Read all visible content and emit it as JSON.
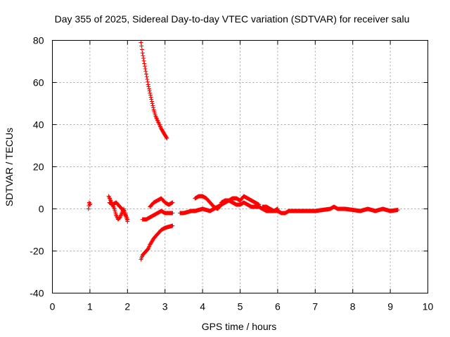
{
  "chart_data": {
    "type": "scatter",
    "title": "Day 355 of 2025, Sidereal Day-to-day VTEC variation (SDTVAR) for receiver salu",
    "xlabel": "GPS time / hours",
    "ylabel": "SDTVAR / TECUs",
    "xlim": [
      0,
      10
    ],
    "ylim": [
      -40,
      80
    ],
    "xticks": [
      0,
      1,
      2,
      3,
      4,
      5,
      6,
      7,
      8,
      9,
      10
    ],
    "yticks": [
      -40,
      -20,
      0,
      20,
      40,
      60,
      80
    ],
    "grid": true,
    "marker": "+",
    "color": "#ff0000",
    "series": [
      {
        "name": "SDTVAR",
        "segments": [
          {
            "x": [
              0.96,
              0.97,
              0.98,
              1.0,
              1.01
            ],
            "y": [
              0.0,
              1.5,
              3.0,
              2.0,
              2.5
            ]
          },
          {
            "x": [
              1.5,
              1.55,
              1.6,
              1.65,
              1.7,
              1.75,
              1.8,
              1.85,
              1.9,
              1.95,
              2.0
            ],
            "y": [
              6.0,
              4.0,
              2.0,
              0.0,
              -3.0,
              -5.0,
              -4.0,
              -2.0,
              0.0,
              -3.0,
              -6.0
            ]
          },
          {
            "x": [
              1.52,
              1.6,
              1.7,
              1.8,
              1.9,
              2.0
            ],
            "y": [
              3.0,
              2.0,
              3.0,
              1.0,
              -1.0,
              -5.0
            ]
          },
          {
            "x": [
              2.36,
              2.4,
              2.45,
              2.5,
              2.55,
              2.6,
              2.65,
              2.7,
              2.75,
              2.8,
              2.85,
              2.9,
              2.95,
              3.0,
              3.05
            ],
            "y": [
              79.0,
              74.0,
              69.0,
              64.0,
              59.0,
              55.0,
              51.0,
              47.0,
              44.0,
              42.0,
              40.0,
              38.0,
              36.5,
              35.0,
              33.5
            ]
          },
          {
            "x": [
              2.4,
              2.5,
              2.6,
              2.7,
              2.8,
              2.9,
              3.0,
              3.1,
              3.2
            ],
            "y": [
              -5.0,
              -5.0,
              -4.0,
              -3.0,
              -2.0,
              -1.0,
              -2.0,
              -2.0,
              -2.0
            ]
          },
          {
            "x": [
              2.6,
              2.7,
              2.8,
              2.9,
              3.0,
              3.1,
              3.2
            ],
            "y": [
              1.0,
              3.0,
              4.0,
              5.0,
              3.0,
              2.0,
              3.0
            ]
          },
          {
            "x": [
              2.36,
              2.4,
              2.45,
              2.5,
              2.55,
              2.6,
              2.7,
              2.8,
              2.9,
              3.0,
              3.1,
              3.2
            ],
            "y": [
              -24.0,
              -22.0,
              -21.0,
              -20.0,
              -19.0,
              -17.0,
              -14.0,
              -12.0,
              -10.0,
              -9.0,
              -8.5,
              -8.0
            ]
          },
          {
            "x": [
              3.4,
              3.5,
              3.6,
              3.7,
              3.8,
              3.9,
              4.0,
              4.1,
              4.2,
              4.3,
              4.4,
              4.5
            ],
            "y": [
              -2.0,
              -2.0,
              -1.5,
              -1.0,
              -1.0,
              -0.5,
              0.0,
              -0.5,
              -1.0,
              0.0,
              1.0,
              2.0
            ]
          },
          {
            "x": [
              3.8,
              3.9,
              4.0,
              4.1,
              4.2,
              4.3,
              4.4,
              4.5,
              4.6,
              4.7,
              4.8,
              4.9,
              5.0,
              5.1,
              5.2,
              5.3,
              5.4,
              5.5
            ],
            "y": [
              5.0,
              6.0,
              6.0,
              5.0,
              3.0,
              1.0,
              0.0,
              2.0,
              3.0,
              4.0,
              5.0,
              5.0,
              4.0,
              6.0,
              5.0,
              4.0,
              3.0,
              2.0
            ]
          },
          {
            "x": [
              4.5,
              4.6,
              4.7,
              4.8,
              4.9,
              5.0,
              5.1,
              5.2,
              5.3,
              5.4,
              5.5,
              5.6,
              5.7,
              5.8,
              5.9,
              6.0
            ],
            "y": [
              3.0,
              4.0,
              4.0,
              3.0,
              2.0,
              2.0,
              3.0,
              2.0,
              1.0,
              1.0,
              1.0,
              0.0,
              -1.0,
              -1.0,
              -1.0,
              0.0
            ]
          },
          {
            "x": [
              5.6,
              5.7,
              5.8,
              5.9,
              6.0,
              6.1,
              6.2,
              6.3,
              6.4,
              6.5,
              6.6,
              6.7,
              6.8,
              6.9,
              7.0
            ],
            "y": [
              1.0,
              1.0,
              0.0,
              -1.0,
              -1.0,
              -2.0,
              -2.0,
              -1.0,
              -1.0,
              -1.0,
              -1.0,
              -1.0,
              -1.0,
              -1.0,
              -1.0
            ]
          },
          {
            "x": [
              7.0,
              7.2,
              7.4,
              7.5,
              7.6,
              7.8,
              8.0,
              8.2,
              8.4,
              8.6,
              8.8,
              9.0,
              9.2
            ],
            "y": [
              -1.0,
              -0.5,
              0.0,
              1.0,
              0.0,
              0.0,
              -0.5,
              -1.0,
              0.0,
              -1.0,
              0.0,
              -1.0,
              -0.5
            ]
          }
        ]
      }
    ]
  }
}
